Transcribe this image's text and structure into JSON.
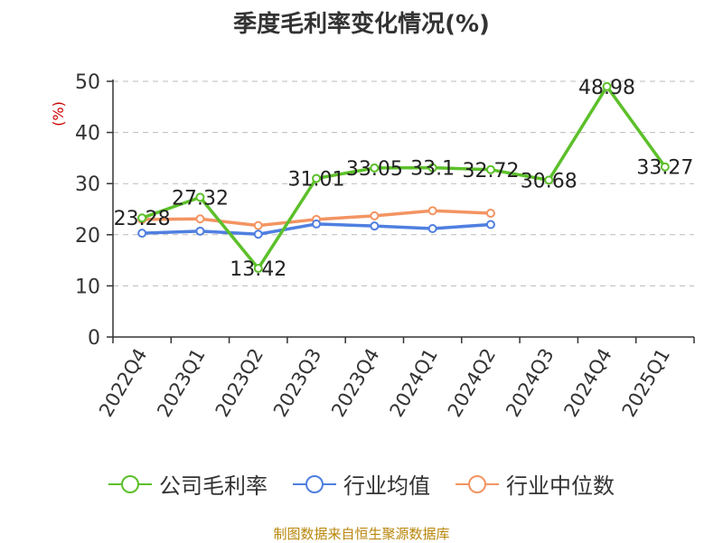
{
  "chart_data": {
    "type": "line",
    "title": "季度毛利率变化情况(%)",
    "ylabel": "(%)",
    "ylim": [
      0,
      50
    ],
    "yticks": [
      0,
      10,
      20,
      30,
      40,
      50
    ],
    "grid": true,
    "legend_position": "bottom",
    "categories": [
      "2022Q4",
      "2023Q1",
      "2023Q2",
      "2023Q3",
      "2023Q4",
      "2024Q1",
      "2024Q2",
      "2024Q3",
      "2024Q4",
      "2025Q1"
    ],
    "series": [
      {
        "name": "公司毛利率",
        "color": "#5cc02a",
        "labels": true,
        "values": [
          23.28,
          27.32,
          13.42,
          31.01,
          33.05,
          33.1,
          32.72,
          30.68,
          48.98,
          33.27
        ]
      },
      {
        "name": "行业均值",
        "color": "#4f7fe0",
        "labels": false,
        "values": [
          20.3,
          20.7,
          20.1,
          22.1,
          21.7,
          21.2,
          22.0,
          null,
          null,
          null
        ]
      },
      {
        "name": "行业中位数",
        "color": "#f39462",
        "labels": false,
        "values": [
          23.0,
          23.1,
          21.8,
          23.0,
          23.7,
          24.7,
          24.2,
          null,
          null,
          null
        ]
      }
    ]
  },
  "source": "制图数据来自恒生聚源数据库"
}
